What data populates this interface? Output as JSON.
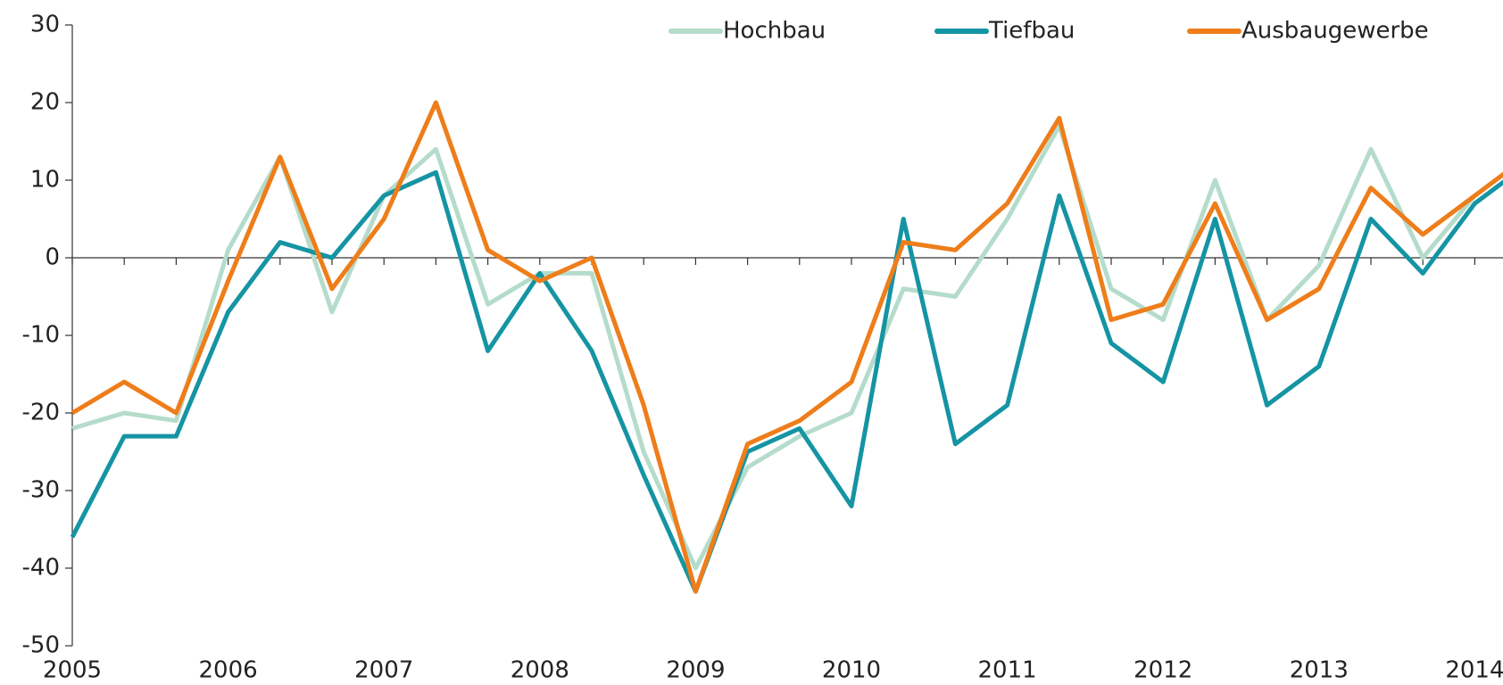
{
  "chart_data": {
    "type": "line",
    "categories": [
      "2005",
      null,
      null,
      "2006",
      null,
      null,
      "2007",
      null,
      null,
      "2008",
      null,
      null,
      "2009",
      null,
      null,
      "2010",
      null,
      null,
      "2011",
      null,
      null,
      "2012",
      null,
      null,
      "2013",
      null,
      null,
      "2014",
      null
    ],
    "series": [
      {
        "name": "Hochbau",
        "color": "#b5dccb",
        "values": [
          -22,
          -20,
          -21,
          1,
          13,
          -7,
          8,
          14,
          -6,
          -2,
          -2,
          -25,
          -40,
          -27,
          -23,
          -20,
          -4,
          -5,
          5,
          17,
          -4,
          -8,
          10,
          -8,
          -1,
          14,
          0,
          8,
          13
        ]
      },
      {
        "name": "Tiefbau",
        "color": "#1594a3",
        "values": [
          -36,
          -23,
          -23,
          -7,
          2,
          0,
          8,
          11,
          -12,
          -2,
          -12,
          -28,
          -43,
          -25,
          -22,
          -32,
          5,
          -24,
          -19,
          8,
          -11,
          -16,
          5,
          -19,
          -14,
          5,
          -2,
          7,
          12
        ]
      },
      {
        "name": "Ausbaugewerbe",
        "color": "#ee7d1a",
        "values": [
          -20,
          -16,
          -20,
          -3,
          13,
          -4,
          5,
          20,
          1,
          -3,
          0,
          -19,
          -43,
          -24,
          -21,
          -16,
          2,
          1,
          7,
          18,
          -8,
          -6,
          7,
          -8,
          -4,
          9,
          3,
          8,
          13
        ]
      }
    ],
    "ylim": [
      -50,
      30
    ],
    "yticks": [
      -50,
      -40,
      -30,
      -20,
      -10,
      0,
      10,
      20,
      30
    ],
    "legend": "top"
  }
}
